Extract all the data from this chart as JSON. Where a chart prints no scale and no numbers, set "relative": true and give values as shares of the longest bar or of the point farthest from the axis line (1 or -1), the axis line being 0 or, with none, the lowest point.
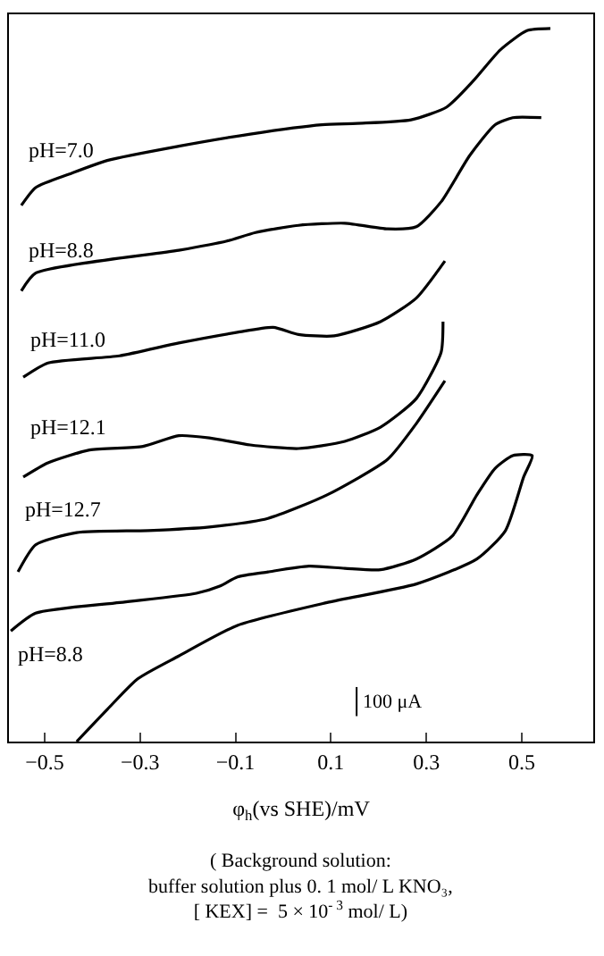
{
  "chart_data": {
    "type": "line",
    "relative": true,
    "xlabel": "φ$_{h}$(vs SHE)/mV",
    "xlim": [
      -0.575,
      0.65
    ],
    "xticks": [
      -0.5,
      -0.3,
      -0.1,
      0.1,
      0.3,
      0.5
    ],
    "legend": false,
    "marker": "none",
    "line_style": "solid",
    "annotations": [
      "100 μA",
      "( Background solution:\nbuffer solution plus 0. 1 mol/ L KNO₃,\n[ KEX] =  5 × 10$^{- 3}$ mol/ L)"
    ],
    "series": [
      {
        "name": "pH=7.0",
        "color": "#000000",
        "x": [
          -0.549,
          -0.519,
          -0.444,
          -0.369,
          -0.219,
          -0.069,
          0.081,
          0.155,
          0.268,
          0.343,
          0.399,
          0.455,
          0.511,
          0.56
        ],
        "values": [
          0.752,
          0.777,
          0.797,
          0.815,
          0.835,
          0.852,
          0.865,
          0.867,
          0.872,
          0.89,
          0.927,
          0.97,
          0.997,
          1.0
        ]
      },
      {
        "name": "pH=8.8",
        "color": "#000000",
        "x": [
          -0.549,
          -0.519,
          -0.219,
          -0.118,
          -0.058,
          0.032,
          0.129,
          0.219,
          0.279,
          0.331,
          0.391,
          0.444,
          0.481,
          0.541
        ],
        "values": [
          0.632,
          0.657,
          0.689,
          0.702,
          0.714,
          0.724,
          0.727,
          0.719,
          0.722,
          0.757,
          0.822,
          0.865,
          0.875,
          0.875
        ]
      },
      {
        "name": "pH=11.0",
        "color": "#000000",
        "x": [
          -0.545,
          -0.493,
          -0.343,
          -0.219,
          -0.096,
          -0.021,
          0.032,
          0.107,
          0.204,
          0.279,
          0.339
        ],
        "values": [
          0.511,
          0.531,
          0.541,
          0.559,
          0.574,
          0.581,
          0.571,
          0.569,
          0.589,
          0.622,
          0.674
        ]
      },
      {
        "name": "pH=12.1",
        "color": "#000000",
        "x": [
          -0.545,
          -0.493,
          -0.406,
          -0.294,
          -0.219,
          -0.155,
          -0.069,
          0.032,
          0.129,
          0.204,
          0.279,
          0.331,
          0.335
        ],
        "values": [
          0.371,
          0.391,
          0.409,
          0.414,
          0.429,
          0.426,
          0.416,
          0.411,
          0.421,
          0.441,
          0.481,
          0.546,
          0.589
        ]
      },
      {
        "name": "pH=12.7",
        "color": "#000000",
        "x": [
          -0.556,
          -0.519,
          -0.433,
          -0.283,
          -0.155,
          -0.032,
          0.092,
          0.219,
          0.279,
          0.339
        ],
        "values": [
          0.238,
          0.276,
          0.293,
          0.296,
          0.301,
          0.313,
          0.346,
          0.396,
          0.446,
          0.506
        ]
      },
      {
        "name": "pH=8.8",
        "color": "#000000",
        "x": [
          -0.571,
          -0.519,
          -0.343,
          -0.182,
          -0.133,
          -0.096,
          -0.032,
          0.054,
          0.129,
          0.204,
          0.279,
          0.354,
          0.406,
          0.444,
          0.481,
          0.522,
          0.504,
          0.466,
          0.406,
          0.279,
          0.092,
          -0.096,
          -0.219,
          -0.305,
          -0.369,
          -0.433
        ],
        "values": [
          0.155,
          0.18,
          0.195,
          0.208,
          0.218,
          0.231,
          0.238,
          0.246,
          0.243,
          0.241,
          0.256,
          0.288,
          0.346,
          0.383,
          0.401,
          0.401,
          0.371,
          0.296,
          0.256,
          0.221,
          0.195,
          0.163,
          0.12,
          0.088,
          0.045,
          0.0
        ]
      }
    ]
  }
}
